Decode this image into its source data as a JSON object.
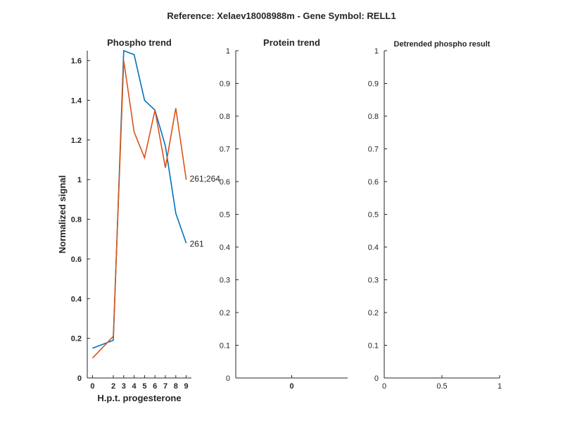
{
  "figure_title": "Reference:  Xelaev18008988m - Gene Symbol:  RELL1",
  "chart_data": [
    {
      "type": "line",
      "title": "Phospho trend",
      "xlabel": "H.p.t. progesterone",
      "ylabel": "Normalized signal",
      "xlim": [
        -0.5,
        9.5
      ],
      "ylim": [
        0,
        1.65
      ],
      "x_ticks": [
        0,
        2,
        3,
        4,
        5,
        6,
        7,
        8,
        9
      ],
      "y_ticks": [
        0,
        0.2,
        0.4,
        0.6,
        0.8,
        1,
        1.2,
        1.4,
        1.6
      ],
      "x": [
        0,
        2,
        3,
        4,
        5,
        6,
        7,
        8,
        9
      ],
      "series": [
        {
          "name": "261",
          "color": "#0072BD",
          "values": [
            0.15,
            0.19,
            1.65,
            1.63,
            1.4,
            1.35,
            1.17,
            0.83,
            0.68
          ]
        },
        {
          "name": "261;264",
          "color": "#D95319",
          "values": [
            0.1,
            0.21,
            1.6,
            1.24,
            1.11,
            1.35,
            1.06,
            1.36,
            1.0
          ]
        }
      ]
    },
    {
      "type": "line",
      "title": "Protein trend",
      "xlabel": "",
      "ylabel": "",
      "xlim": [
        -1,
        1
      ],
      "ylim": [
        0,
        1
      ],
      "x_ticks": [
        0
      ],
      "y_ticks": [
        0,
        0.1,
        0.2,
        0.3,
        0.4,
        0.5,
        0.6,
        0.7,
        0.8,
        0.9,
        1
      ],
      "series": []
    },
    {
      "type": "line",
      "title": "Detrended phospho result",
      "xlabel": "",
      "ylabel": "",
      "xlim": [
        0,
        1
      ],
      "ylim": [
        0,
        1
      ],
      "x_ticks": [
        0,
        0.5,
        1
      ],
      "y_ticks": [
        0,
        0.1,
        0.2,
        0.3,
        0.4,
        0.5,
        0.6,
        0.7,
        0.8,
        0.9,
        1
      ],
      "series": []
    }
  ]
}
